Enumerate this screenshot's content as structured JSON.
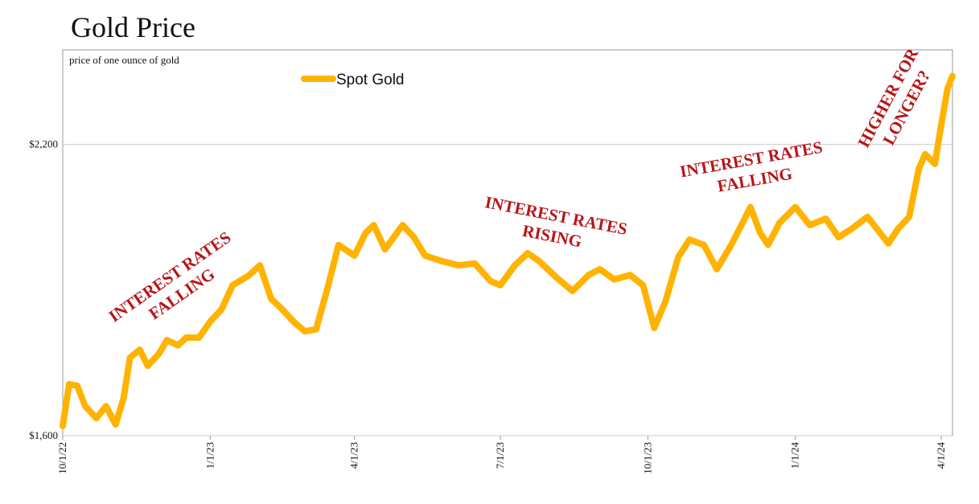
{
  "chart_data": {
    "type": "line",
    "title": "Gold Price",
    "subtitle": "price of one ounce of gold",
    "x": [
      "10/1/22",
      "10/5/22",
      "10/10/22",
      "10/15/22",
      "10/22/22",
      "10/28/22",
      "11/3/22",
      "11/8/22",
      "11/12/22",
      "11/18/22",
      "11/23/22",
      "11/30/22",
      "12/5/22",
      "12/12/22",
      "12/17/22",
      "12/25/22",
      "1/1/23",
      "1/8/23",
      "1/15/23",
      "1/25/23",
      "2/1/23",
      "2/8/23",
      "2/15/23",
      "2/22/23",
      "3/1/23",
      "3/8/23",
      "3/15/23",
      "3/22/23",
      "4/1/23",
      "4/8/23",
      "4/13/23",
      "4/20/23",
      "5/1/23",
      "5/8/23",
      "5/15/23",
      "5/25/23",
      "6/5/23",
      "6/15/23",
      "6/25/23",
      "7/1/23",
      "7/10/23",
      "7/18/23",
      "7/25/23",
      "8/5/23",
      "8/15/23",
      "8/25/23",
      "9/1/23",
      "9/10/23",
      "9/20/23",
      "9/28/23",
      "10/5/23",
      "10/12/23",
      "10/20/23",
      "10/27/23",
      "11/5/23",
      "11/13/23",
      "11/22/23",
      "12/1/23",
      "12/4/23",
      "12/10/23",
      "12/15/23",
      "12/22/23",
      "1/1/24",
      "1/10/24",
      "1/20/24",
      "1/28/24",
      "2/5/24",
      "2/15/24",
      "2/28/24",
      "3/5/24",
      "3/12/24",
      "3/18/24",
      "3/22/24",
      "3/28/24",
      "4/1/24",
      "4/5/24",
      "4/8/24"
    ],
    "series": [
      {
        "name": "Spot Gold",
        "color": "#ffb300",
        "values": [
          1620,
          1706,
          1703,
          1661,
          1636,
          1661,
          1623,
          1678,
          1761,
          1777,
          1744,
          1769,
          1797,
          1786,
          1802,
          1802,
          1835,
          1860,
          1910,
          1930,
          1951,
          1882,
          1860,
          1835,
          1815,
          1819,
          1902,
          1993,
          1971,
          2018,
          2034,
          1984,
          2034,
          2009,
          1971,
          1960,
          1951,
          1955,
          1918,
          1910,
          1951,
          1976,
          1960,
          1926,
          1898,
          1931,
          1943,
          1922,
          1931,
          1910,
          1822,
          1877,
          1968,
          2004,
          1993,
          1943,
          1993,
          2051,
          2071,
          2018,
          1993,
          2038,
          2071,
          2034,
          2047,
          2009,
          2026,
          2051,
          1996,
          2026,
          2051,
          2150,
          2180,
          2160,
          2241,
          2316,
          2341
        ]
      }
    ],
    "xlim": [
      "10/1/22",
      "4/8/24"
    ],
    "xticks": [
      "10/1/22",
      "1/1/23",
      "4/1/23",
      "7/1/23",
      "10/1/23",
      "1/1/24",
      "4/1/24"
    ],
    "ylim": [
      1600,
      2395
    ],
    "yticks": [
      {
        "value": 1600,
        "label": "$1,600"
      },
      {
        "value": 2200,
        "label": "$2,200"
      }
    ],
    "grid": true,
    "annotations": [
      {
        "lines": [
          "INTEREST RATES",
          "FALLING"
        ]
      },
      {
        "lines": [
          "INTEREST RATES",
          "RISING"
        ]
      },
      {
        "lines": [
          "INTEREST RATES",
          "FALLING"
        ]
      },
      {
        "lines": [
          "HIGHER FOR",
          "LONGER?"
        ]
      }
    ]
  }
}
